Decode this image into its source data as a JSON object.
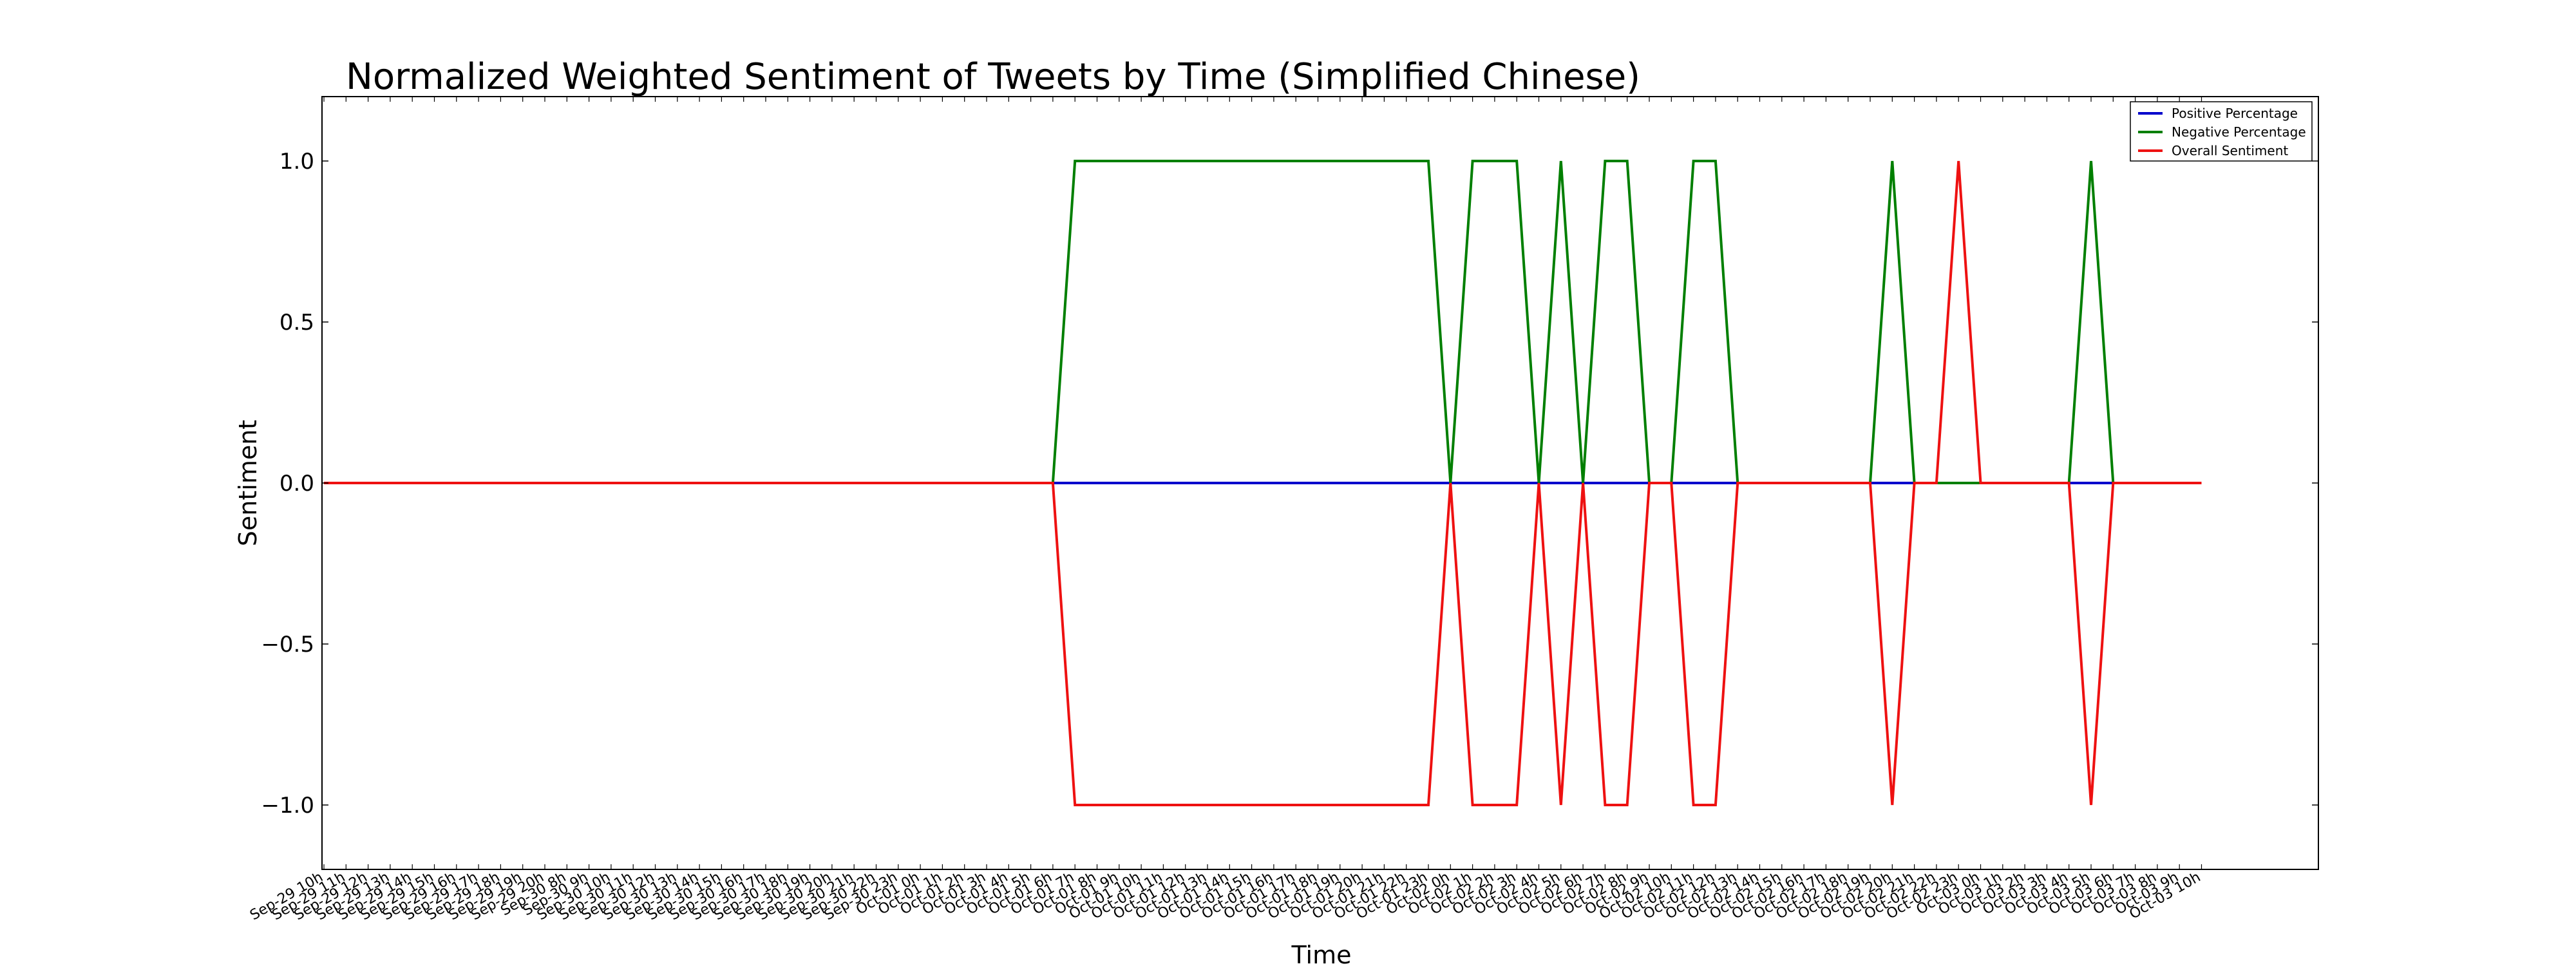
{
  "chart_data": {
    "type": "line",
    "title": "Normalized Weighted Sentiment of Tweets by Time (Simplified Chinese)",
    "xlabel": "Time",
    "ylabel": "Sentiment",
    "ylim": [
      -1.2,
      1.2
    ],
    "yticks": [
      1.0,
      0.5,
      0.0,
      -0.5,
      -1.0
    ],
    "ytick_labels": [
      "1.0",
      "0.5",
      "0.0",
      "−0.5",
      "−1.0"
    ],
    "grid": false,
    "legend_position": "top-right",
    "categories": [
      "Sep-29 10h",
      "Sep-29 11h",
      "Sep-29 12h",
      "Sep-29 13h",
      "Sep-29 14h",
      "Sep-29 15h",
      "Sep-29 16h",
      "Sep-29 17h",
      "Sep-29 18h",
      "Sep-29 19h",
      "Sep-29 20h",
      "Sep-30 8h",
      "Sep-30 9h",
      "Sep-30 10h",
      "Sep-30 11h",
      "Sep-30 12h",
      "Sep-30 13h",
      "Sep-30 14h",
      "Sep-30 15h",
      "Sep-30 16h",
      "Sep-30 17h",
      "Sep-30 18h",
      "Sep-30 19h",
      "Sep-30 20h",
      "Sep-30 21h",
      "Sep-30 22h",
      "Sep-30 23h",
      "Oct-01 0h",
      "Oct-01 1h",
      "Oct-01 2h",
      "Oct-01 3h",
      "Oct-01 4h",
      "Oct-01 5h",
      "Oct-01 6h",
      "Oct-01 7h",
      "Oct-01 8h",
      "Oct-01 9h",
      "Oct-01 10h",
      "Oct-01 11h",
      "Oct-01 12h",
      "Oct-01 13h",
      "Oct-01 14h",
      "Oct-01 15h",
      "Oct-01 16h",
      "Oct-01 17h",
      "Oct-01 18h",
      "Oct-01 19h",
      "Oct-01 20h",
      "Oct-01 21h",
      "Oct-01 22h",
      "Oct-01 23h",
      "Oct-02 0h",
      "Oct-02 1h",
      "Oct-02 2h",
      "Oct-02 3h",
      "Oct-02 4h",
      "Oct-02 5h",
      "Oct-02 6h",
      "Oct-02 7h",
      "Oct-02 8h",
      "Oct-02 9h",
      "Oct-02 10h",
      "Oct-02 11h",
      "Oct-02 12h",
      "Oct-02 13h",
      "Oct-02 14h",
      "Oct-02 15h",
      "Oct-02 16h",
      "Oct-02 17h",
      "Oct-02 18h",
      "Oct-02 19h",
      "Oct-02 20h",
      "Oct-02 21h",
      "Oct-02 22h",
      "Oct-02 23h",
      "Oct-03 0h",
      "Oct-03 1h",
      "Oct-03 2h",
      "Oct-03 3h",
      "Oct-03 4h",
      "Oct-03 5h",
      "Oct-03 6h",
      "Oct-03 7h",
      "Oct-03 8h",
      "Oct-03 9h",
      "Oct-03 10h"
    ],
    "series": [
      {
        "name": "Positive Percentage",
        "color": "#0000cc",
        "values": [
          0,
          0,
          0,
          0,
          0,
          0,
          0,
          0,
          0,
          0,
          0,
          0,
          0,
          0,
          0,
          0,
          0,
          0,
          0,
          0,
          0,
          0,
          0,
          0,
          0,
          0,
          0,
          0,
          0,
          0,
          0,
          0,
          0,
          0,
          0,
          0,
          0,
          0,
          0,
          0,
          0,
          0,
          0,
          0,
          0,
          0,
          0,
          0,
          0,
          0,
          0,
          0,
          0,
          0,
          0,
          0,
          0,
          0,
          0,
          0,
          0,
          0,
          0,
          0,
          0,
          0,
          0,
          0,
          0,
          0,
          0,
          0,
          0,
          0,
          0,
          0,
          0,
          0,
          0,
          0,
          0,
          0,
          0,
          0,
          0,
          0
        ]
      },
      {
        "name": "Negative Percentage",
        "color": "#007f00",
        "values": [
          0,
          0,
          0,
          0,
          0,
          0,
          0,
          0,
          0,
          0,
          0,
          0,
          0,
          0,
          0,
          0,
          0,
          0,
          0,
          0,
          0,
          0,
          0,
          0,
          0,
          0,
          0,
          0,
          0,
          0,
          0,
          0,
          0,
          0,
          1,
          1,
          1,
          1,
          1,
          1,
          1,
          1,
          1,
          1,
          1,
          1,
          1,
          1,
          1,
          1,
          1,
          0,
          1,
          1,
          1,
          0,
          1,
          0,
          1,
          1,
          0,
          0,
          1,
          1,
          0,
          0,
          0,
          0,
          0,
          0,
          0,
          1,
          0,
          0,
          0,
          0,
          0,
          0,
          0,
          0,
          1,
          0,
          0,
          0,
          0,
          0
        ]
      },
      {
        "name": "Overall Sentiment",
        "color": "#ee1111",
        "values": [
          0,
          0,
          0,
          0,
          0,
          0,
          0,
          0,
          0,
          0,
          0,
          0,
          0,
          0,
          0,
          0,
          0,
          0,
          0,
          0,
          0,
          0,
          0,
          0,
          0,
          0,
          0,
          0,
          0,
          0,
          0,
          0,
          0,
          0,
          -1,
          -1,
          -1,
          -1,
          -1,
          -1,
          -1,
          -1,
          -1,
          -1,
          -1,
          -1,
          -1,
          -1,
          -1,
          -1,
          -1,
          0,
          -1,
          -1,
          -1,
          0,
          -1,
          0,
          -1,
          -1,
          0,
          0,
          -1,
          -1,
          0,
          0,
          0,
          0,
          0,
          0,
          0,
          -1,
          0,
          0,
          1,
          0,
          0,
          0,
          0,
          0,
          -1,
          0,
          0,
          0,
          0,
          0
        ]
      }
    ]
  }
}
